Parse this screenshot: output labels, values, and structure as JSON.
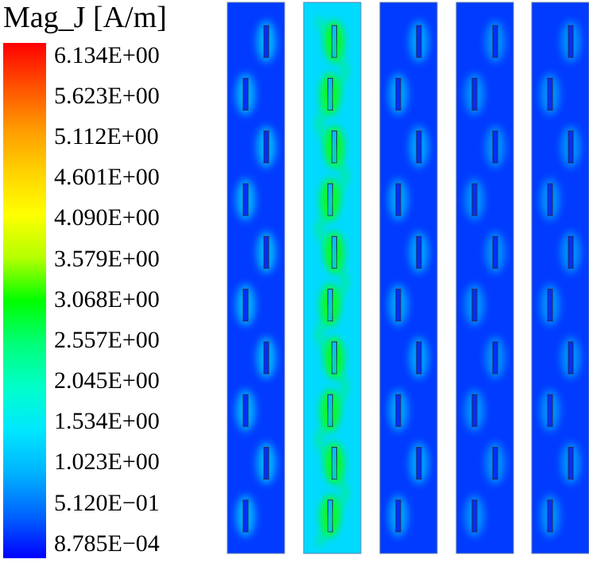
{
  "chart_data": {
    "type": "heatmap",
    "title": "",
    "legend": {
      "title": "Mag_J [A/m]",
      "placement": "left",
      "colormap": "rainbow",
      "ticks": [
        "6.134E+00",
        "5.623E+00",
        "5.112E+00",
        "4.601E+00",
        "4.090E+00",
        "3.579E+00",
        "3.068E+00",
        "2.557E+00",
        "2.045E+00",
        "1.534E+00",
        "1.023E+00",
        "5.120E−01",
        "8.785E−04"
      ],
      "max": 6.134,
      "min": 0.0008785
    },
    "panels": [
      {
        "background_level": 0.3,
        "hotspot_level": 1.4,
        "elements": 10
      },
      {
        "background_level": 1.4,
        "hotspot_level": 3.1,
        "elements": 10
      },
      {
        "background_level": 0.3,
        "hotspot_level": 1.2,
        "elements": 10
      },
      {
        "background_level": 0.3,
        "hotspot_level": 1.0,
        "elements": 10
      },
      {
        "background_level": 0.3,
        "hotspot_level": 1.0,
        "elements": 10
      }
    ]
  }
}
